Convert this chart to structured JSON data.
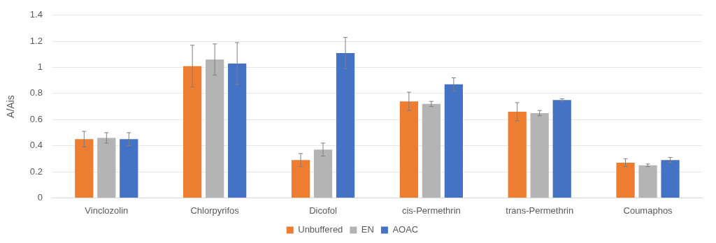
{
  "chart_data": {
    "type": "bar",
    "ylabel": "A/Ais",
    "categories": [
      "Vinclozolin",
      "Chlorpyrifos",
      "Dicofol",
      "cis-Permethrin",
      "trans-Permethrin",
      "Coumaphos"
    ],
    "series": [
      {
        "name": "Unbuffered",
        "color": "#ed7d31",
        "values": [
          0.45,
          1.01,
          0.29,
          0.74,
          0.66,
          0.27
        ],
        "errors": [
          0.06,
          0.16,
          0.05,
          0.07,
          0.07,
          0.03
        ]
      },
      {
        "name": "EN",
        "color": "#b4b4b4",
        "values": [
          0.46,
          1.06,
          0.37,
          0.72,
          0.65,
          0.25
        ],
        "errors": [
          0.04,
          0.12,
          0.05,
          0.02,
          0.02,
          0.01
        ]
      },
      {
        "name": "AOAC",
        "color": "#4472c4",
        "values": [
          0.45,
          1.03,
          1.11,
          0.87,
          0.75,
          0.29
        ],
        "errors": [
          0.05,
          0.16,
          0.12,
          0.05,
          0.01,
          0.02
        ]
      }
    ],
    "ylim": [
      0,
      1.4
    ],
    "yticks": [
      0,
      0.2,
      0.4,
      0.6,
      0.8,
      1,
      1.2,
      1.4
    ],
    "grid": "y",
    "legend": "bottom"
  }
}
